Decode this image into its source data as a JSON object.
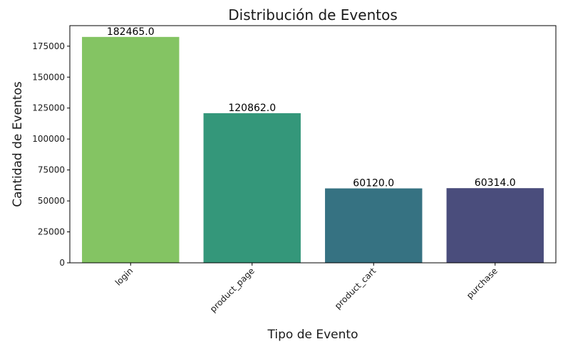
{
  "chart_data": {
    "type": "bar",
    "title": "Distribución de Eventos",
    "xlabel": "Tipo de Evento",
    "ylabel": "Cantidad de Eventos",
    "categories": [
      "login",
      "product_page",
      "product_cart",
      "purchase"
    ],
    "values": [
      182465.0,
      120862.0,
      60120.0,
      60314.0
    ],
    "data_labels": [
      "182465.0",
      "120862.0",
      "60120.0",
      "60314.0"
    ],
    "colors": [
      "#84c463",
      "#34977a",
      "#367282",
      "#4a4d7c"
    ],
    "ylim": [
      0,
      191580
    ],
    "yticks": [
      0,
      25000,
      50000,
      75000,
      100000,
      125000,
      150000,
      175000
    ],
    "ytick_labels": [
      "0",
      "25000",
      "50000",
      "75000",
      "100000",
      "125000",
      "150000",
      "175000"
    ],
    "x_tick_rotation": "45 degrees",
    "grid": false,
    "legend": "none"
  }
}
